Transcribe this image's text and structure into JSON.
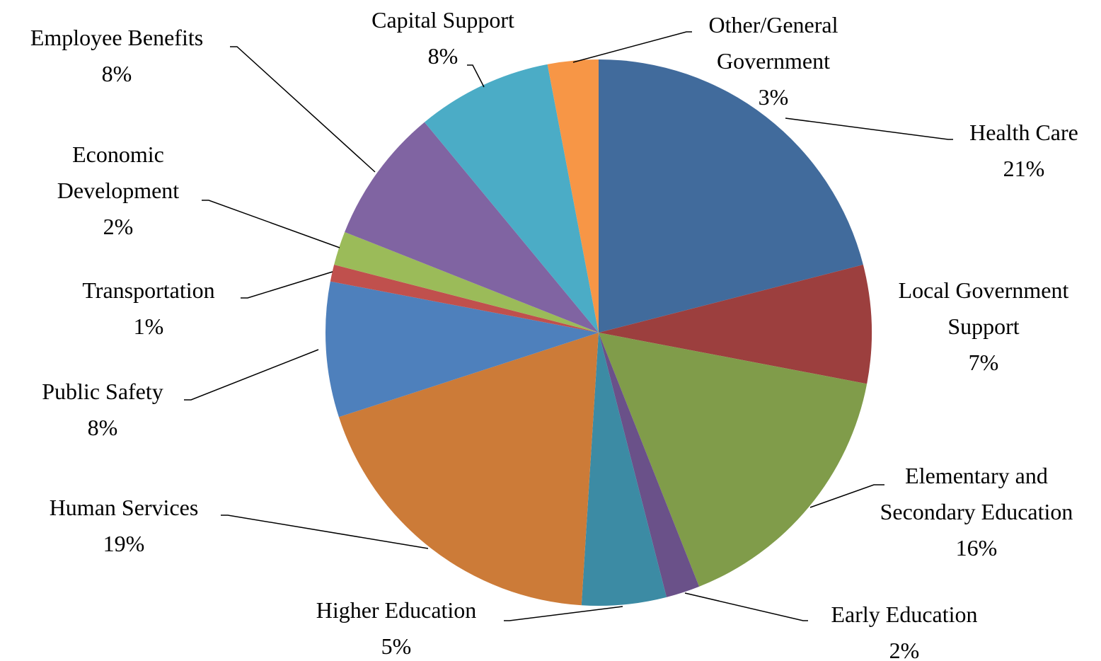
{
  "chart_data": {
    "type": "pie",
    "categories": [
      "Health Care",
      "Local Government Support",
      "Elementary and Secondary Education",
      "Early Education",
      "Higher Education",
      "Human Services",
      "Public Safety",
      "Transportation",
      "Economic Development",
      "Employee Benefits",
      "Capital Support",
      "Other/General Government"
    ],
    "values": [
      21,
      7,
      16,
      2,
      5,
      19,
      8,
      1,
      2,
      8,
      8,
      3
    ],
    "value_labels": [
      "21%",
      "7%",
      "16%",
      "2%",
      "5%",
      "19%",
      "8%",
      "1%",
      "2%",
      "8%",
      "8%",
      "3%"
    ],
    "colors": [
      "#416b9c",
      "#9c3f3e",
      "#809c4a",
      "#6a5189",
      "#3c8ba4",
      "#cc7b38",
      "#4e80bc",
      "#c0504d",
      "#9bbb59",
      "#8064a2",
      "#4bacc6",
      "#f79646"
    ]
  }
}
